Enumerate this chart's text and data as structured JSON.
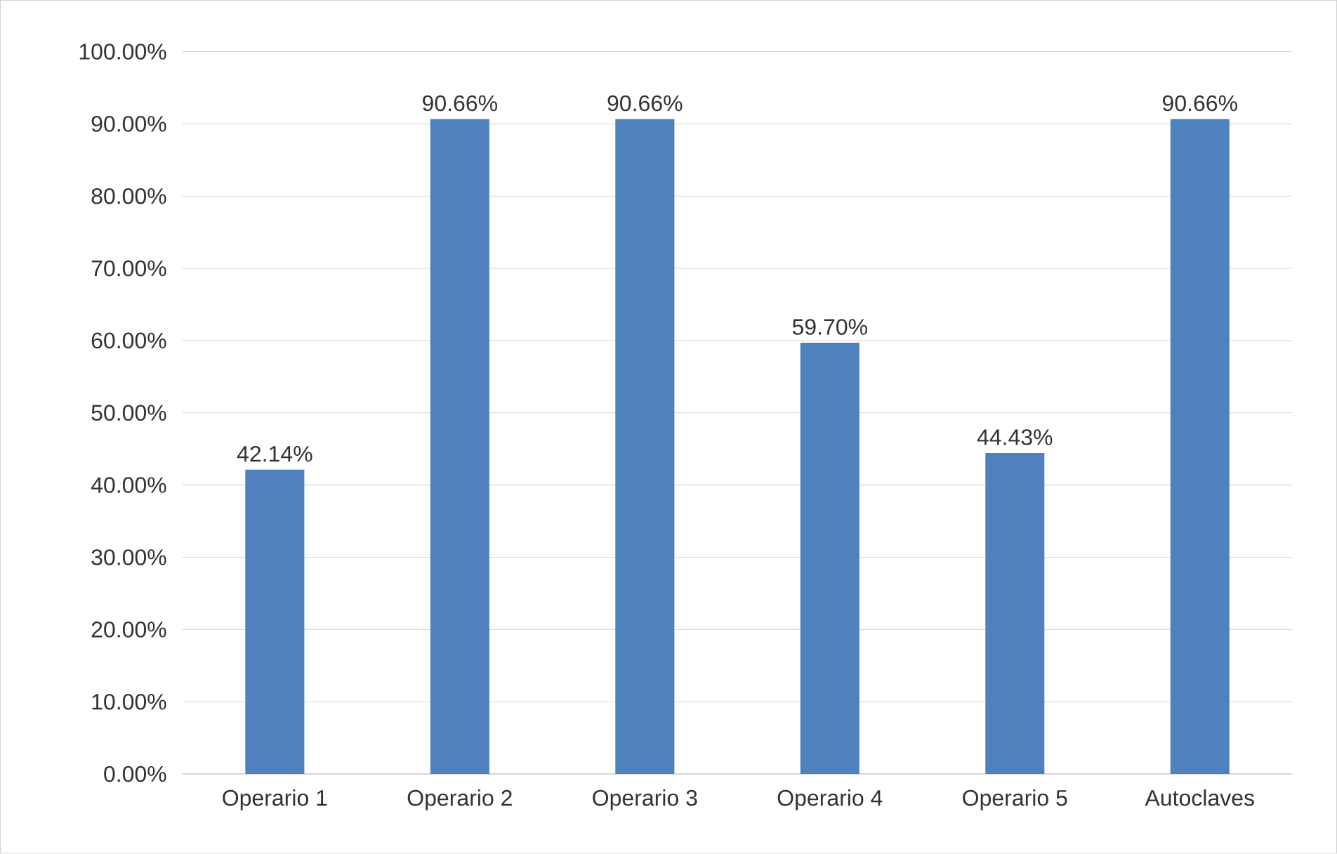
{
  "chart_data": {
    "type": "bar",
    "categories": [
      "Operario 1",
      "Operario 2",
      "Operario 3",
      "Operario 4",
      "Operario 5",
      "Autoclaves"
    ],
    "values": [
      42.14,
      90.66,
      90.66,
      59.7,
      44.43,
      90.66
    ],
    "value_labels": [
      "42.14%",
      "90.66%",
      "90.66%",
      "59.70%",
      "44.43%",
      "90.66%"
    ],
    "color": "#4f81bd",
    "ylim": [
      0,
      100
    ],
    "yticks": [
      {
        "value": 0,
        "label": "0.00%"
      },
      {
        "value": 10,
        "label": "10.00%"
      },
      {
        "value": 20,
        "label": "20.00%"
      },
      {
        "value": 30,
        "label": "30.00%"
      },
      {
        "value": 40,
        "label": "40.00%"
      },
      {
        "value": 50,
        "label": "50.00%"
      },
      {
        "value": 60,
        "label": "60.00%"
      },
      {
        "value": 70,
        "label": "70.00%"
      },
      {
        "value": 80,
        "label": "80.00%"
      },
      {
        "value": 90,
        "label": "90.00%"
      },
      {
        "value": 100,
        "label": "100.00%"
      }
    ],
    "grid": "y"
  }
}
